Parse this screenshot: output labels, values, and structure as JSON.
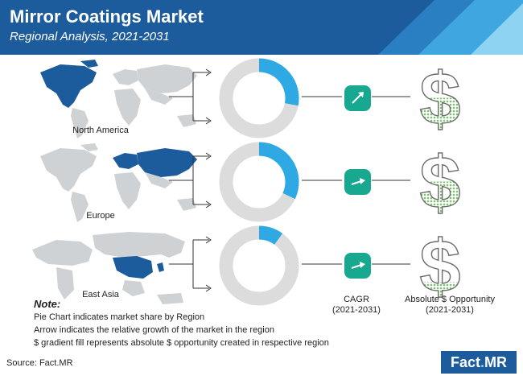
{
  "header": {
    "title": "Mirror Coatings Market",
    "subtitle": "Regional Analysis, 2021-2031"
  },
  "colors": {
    "header_blue": "#1d5c9c",
    "header_light": "#3fa6e0",
    "map_gray": "#cfd2d5",
    "map_highlight": "#1d5c9c",
    "donut_gray": "#dcdcdc",
    "donut_accent": "#2ea9e3",
    "cagr_badge": "#17a88f",
    "dollar_fill": "#7cc26e"
  },
  "regions": [
    {
      "label": "North America",
      "map_icon": "world-map-north-america-icon"
    },
    {
      "label": "Europe",
      "map_icon": "world-map-europe-icon"
    },
    {
      "label": "East Asia",
      "map_icon": "asia-map-east-asia-icon"
    }
  ],
  "chart_data": {
    "type": "pie",
    "variant": "donut",
    "title": "",
    "series": [
      {
        "category": "North America",
        "share_pct": 28,
        "cagr_arrow": "up",
        "dollar_fill_fraction": 0.55
      },
      {
        "category": "Europe",
        "share_pct": 32,
        "cagr_arrow": "right",
        "dollar_fill_fraction": 0.55
      },
      {
        "category": "East Asia",
        "share_pct": 10,
        "cagr_arrow": "right",
        "dollar_fill_fraction": 0.25
      }
    ]
  },
  "column_labels": {
    "cagr": "CAGR",
    "cagr_period": "(2021-2031)",
    "opportunity": "Absolute $ Opportunity",
    "opportunity_period": "(2021-2031)"
  },
  "note": {
    "title": "Note:",
    "lines": [
      "Pie Chart indicates market share by Region",
      "Arrow indicates the relative growth of the market in the region",
      "$ gradient fill represents absolute $ opportunity created in respective region"
    ]
  },
  "footer": {
    "source": "Source: Fact.MR",
    "brand_main": "Fact",
    "brand_dot": ".",
    "brand_suffix": "MR"
  }
}
